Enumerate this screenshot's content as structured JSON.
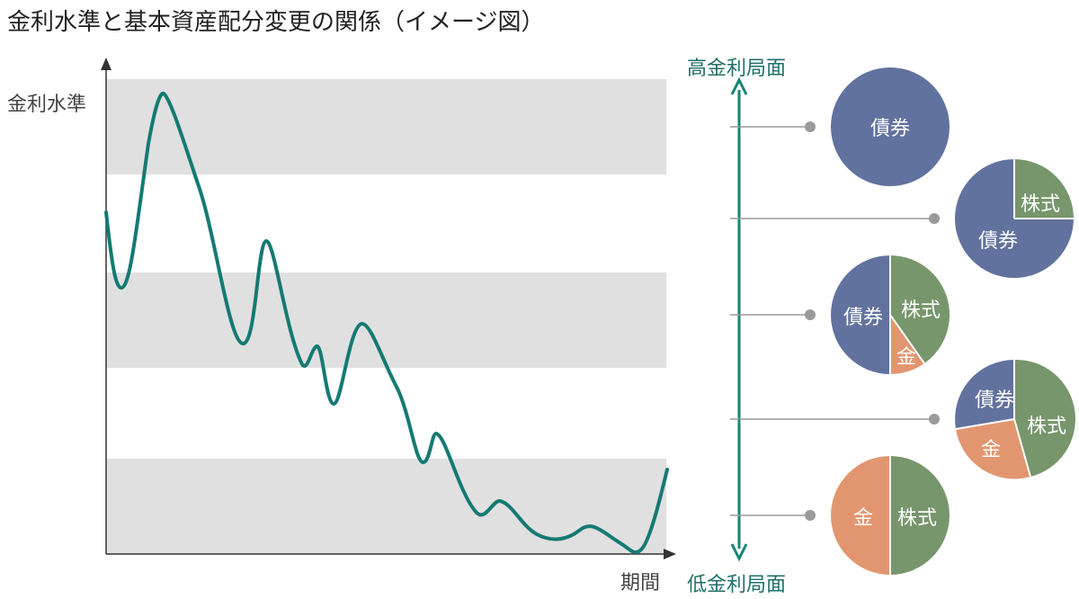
{
  "title": "金利水準と基本資産配分変更の関係（イメージ図）",
  "chart": {
    "y_label": "金利水準",
    "x_label": "期間",
    "line_color": "#147A72",
    "band_color": "#E0E0E0"
  },
  "scale": {
    "top_label": "高金利局面",
    "bottom_label": "低金利局面",
    "arrow_color": "#16847A"
  },
  "colors": {
    "bond": "#62729E",
    "stock": "#77966C",
    "gold": "#E29670"
  },
  "allocations": [
    {
      "name": "high-1",
      "slices": [
        {
          "asset": "bond",
          "label": "債券"
        }
      ]
    },
    {
      "name": "high-2",
      "slices": [
        {
          "asset": "stock",
          "label": "株式"
        },
        {
          "asset": "bond",
          "label": "債券"
        }
      ]
    },
    {
      "name": "mid",
      "slices": [
        {
          "asset": "stock",
          "label": "株式"
        },
        {
          "asset": "gold",
          "label": "金"
        },
        {
          "asset": "bond",
          "label": "債券"
        }
      ]
    },
    {
      "name": "low-2",
      "slices": [
        {
          "asset": "stock",
          "label": "株式"
        },
        {
          "asset": "gold",
          "label": "金"
        },
        {
          "asset": "bond",
          "label": "債券"
        }
      ]
    },
    {
      "name": "low-1",
      "slices": [
        {
          "asset": "stock",
          "label": "株式"
        },
        {
          "asset": "gold",
          "label": "金"
        }
      ]
    }
  ]
}
